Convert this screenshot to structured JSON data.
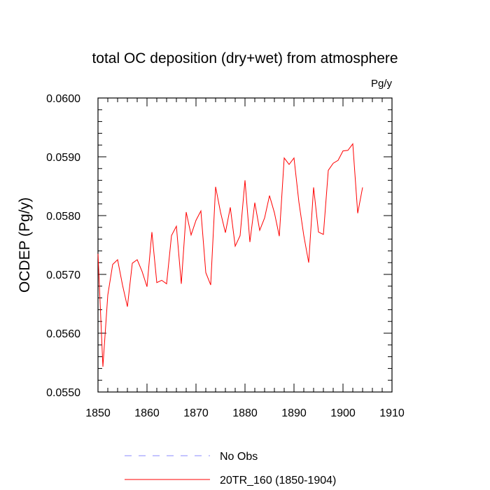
{
  "chart_data": {
    "type": "line",
    "title": "total OC deposition (dry+wet) from atmosphere",
    "units": "Pg/y",
    "xlabel": "",
    "ylabel": "OCDEP  (Pg/y)",
    "xlim": [
      1850,
      1910
    ],
    "ylim": [
      0.055,
      0.06
    ],
    "x_ticks": [
      1850,
      1860,
      1870,
      1880,
      1890,
      1900,
      1910
    ],
    "x_tick_labels": [
      "1850",
      "1860",
      "1870",
      "1880",
      "1890",
      "1900",
      "1910"
    ],
    "y_ticks": [
      0.055,
      0.056,
      0.057,
      0.058,
      0.059,
      0.06
    ],
    "y_tick_labels": [
      "0.0550",
      "0.0560",
      "0.0570",
      "0.0580",
      "0.0590",
      "0.0600"
    ],
    "legend_position": "bottom",
    "series": [
      {
        "name": "No Obs",
        "color": "#8a8aff",
        "style": "dashed",
        "x": [],
        "values": []
      },
      {
        "name": "20TR_160 (1850-1904)",
        "color": "#ff0000",
        "style": "solid",
        "x": [
          1850,
          1851,
          1852,
          1853,
          1854,
          1855,
          1856,
          1857,
          1858,
          1859,
          1860,
          1861,
          1862,
          1863,
          1864,
          1865,
          1866,
          1867,
          1868,
          1869,
          1870,
          1871,
          1872,
          1873,
          1874,
          1875,
          1876,
          1877,
          1878,
          1879,
          1880,
          1881,
          1882,
          1883,
          1884,
          1885,
          1886,
          1887,
          1888,
          1889,
          1890,
          1891,
          1892,
          1893,
          1894,
          1895,
          1896,
          1897,
          1898,
          1899,
          1900,
          1901,
          1902,
          1903,
          1904
        ],
        "values": [
          0.05735,
          0.05543,
          0.05665,
          0.05717,
          0.05725,
          0.05682,
          0.05645,
          0.05719,
          0.05725,
          0.05705,
          0.05679,
          0.05772,
          0.05686,
          0.0569,
          0.05684,
          0.05766,
          0.05782,
          0.05684,
          0.05806,
          0.05767,
          0.05792,
          0.05808,
          0.05703,
          0.05682,
          0.05849,
          0.05806,
          0.05771,
          0.05814,
          0.05748,
          0.05766,
          0.0586,
          0.05755,
          0.05822,
          0.05775,
          0.05796,
          0.05834,
          0.05805,
          0.05765,
          0.05898,
          0.05887,
          0.05898,
          0.05823,
          0.05766,
          0.0572,
          0.05848,
          0.05772,
          0.05768,
          0.05877,
          0.05889,
          0.05894,
          0.0591,
          0.05911,
          0.05922,
          0.05804,
          0.05848
        ]
      }
    ]
  }
}
